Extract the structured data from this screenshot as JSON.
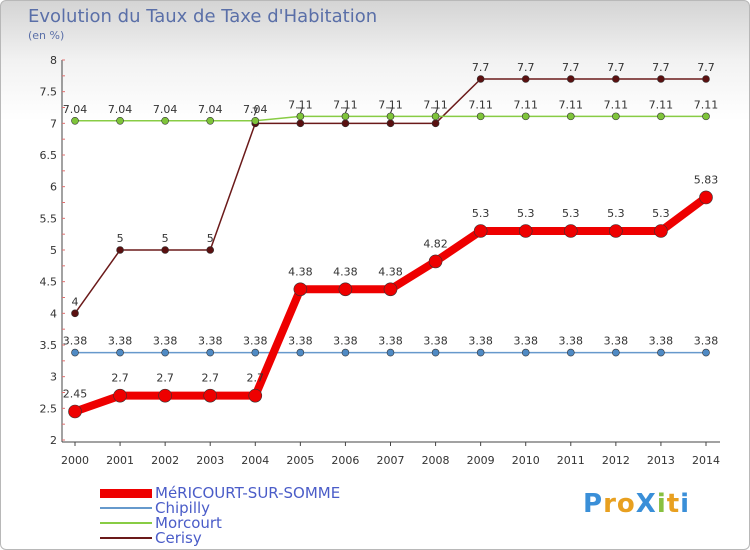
{
  "chart_data": {
    "type": "line",
    "title": "Evolution du Taux de Taxe d'Habitation",
    "unit_label": "(en %)",
    "ylim": [
      2,
      8
    ],
    "yticks": [
      "2",
      "2.5",
      "3",
      "3.5",
      "4",
      "4.5",
      "5",
      "5.5",
      "6",
      "6.5",
      "7",
      "7.5",
      "8"
    ],
    "x": [
      "2000",
      "2001",
      "2002",
      "2003",
      "2004",
      "2005",
      "2006",
      "2007",
      "2008",
      "2009",
      "2010",
      "2011",
      "2012",
      "2013",
      "2014"
    ],
    "series": [
      {
        "name": "Cerisy",
        "color": "#6b1a1a",
        "marker": "#5a1010",
        "width": 1.5,
        "r": 3.5,
        "values": [
          4,
          5,
          5,
          5,
          7,
          7,
          7,
          7,
          7,
          7.7,
          7.7,
          7.7,
          7.7,
          7.7,
          7.7
        ],
        "labels": [
          "4",
          "5",
          "5",
          "5",
          "7",
          "7",
          "7",
          "7",
          "7",
          "7.7",
          "7.7",
          "7.7",
          "7.7",
          "7.7",
          "7.7"
        ]
      },
      {
        "name": "Morcourt",
        "color": "#88cc44",
        "marker": "#7ec43a",
        "width": 1.5,
        "r": 3.5,
        "values": [
          7.04,
          7.04,
          7.04,
          7.04,
          7.04,
          7.11,
          7.11,
          7.11,
          7.11,
          7.11,
          7.11,
          7.11,
          7.11,
          7.11,
          7.11
        ],
        "labels": [
          "7.04",
          "7.04",
          "7.04",
          "7.04",
          "7.04",
          "7.11",
          "7.11",
          "7.11",
          "7.11",
          "7.11",
          "7.11",
          "7.11",
          "7.11",
          "7.11",
          "7.11"
        ]
      },
      {
        "name": "Chipilly",
        "color": "#6699cc",
        "marker": "#4f8ac4",
        "width": 1.5,
        "r": 3.5,
        "values": [
          3.38,
          3.38,
          3.38,
          3.38,
          3.38,
          3.38,
          3.38,
          3.38,
          3.38,
          3.38,
          3.38,
          3.38,
          3.38,
          3.38,
          3.38
        ],
        "labels": [
          "3.38",
          "3.38",
          "3.38",
          "3.38",
          "3.38",
          "3.38",
          "3.38",
          "3.38",
          "3.38",
          "3.38",
          "3.38",
          "3.38",
          "3.38",
          "3.38",
          "3.38"
        ]
      },
      {
        "name": "MéRICOURT-SUR-SOMME",
        "color": "#ee0000",
        "marker": "#ee0000",
        "width": 8,
        "r": 6.5,
        "values": [
          2.45,
          2.7,
          2.7,
          2.7,
          2.7,
          4.38,
          4.38,
          4.38,
          4.82,
          5.3,
          5.3,
          5.3,
          5.3,
          5.3,
          5.83
        ],
        "labels": [
          "2.45",
          "2.7",
          "2.7",
          "2.7",
          "2.7",
          "4.38",
          "4.38",
          "4.38",
          "4.82",
          "5.3",
          "5.3",
          "5.3",
          "5.3",
          "5.3",
          "5.83"
        ]
      }
    ],
    "legend_order": [
      "MéRICOURT-SUR-SOMME",
      "Chipilly",
      "Morcourt",
      "Cerisy"
    ],
    "legend_placement": "bottom-left"
  },
  "branding": {
    "logo_text": "ProXiti"
  }
}
